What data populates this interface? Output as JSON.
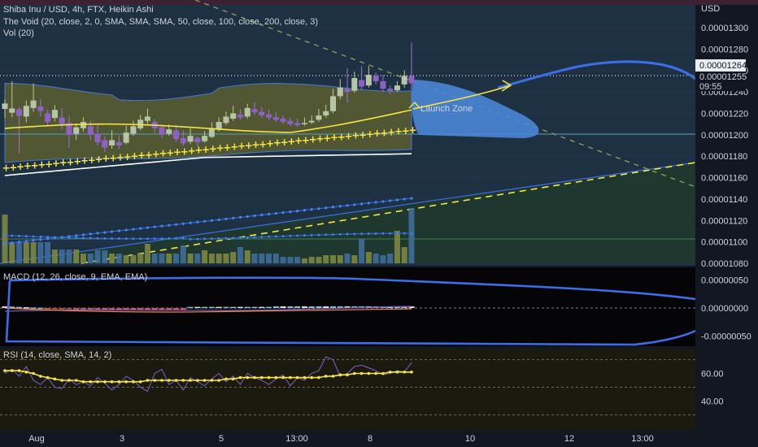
{
  "legend": {
    "title": "Shiba Inu / USD, 4h, FTX, Heikin Ashi",
    "indicator": "The Void (20, close, 2, 0, SMA, SMA, SMA, 50, close, 100, close, 200, close, 3)",
    "vol": "Vol (20)"
  },
  "currency": "USD",
  "price_tag": {
    "price": "0.00001264",
    "price2": "0.00001255",
    "countdown": "09:55"
  },
  "annotation": "Launch Zone",
  "macd_label": "MACD (12, 26, close, 9, EMA, EMA)",
  "rsi_label": "RSI (14, close, SMA, 14, 2)",
  "colors": {
    "bg": "#131722",
    "bull": "#b7b15f",
    "bear": "#7e57c2",
    "yellow": "#f5e642",
    "blue": "#3d6ee8",
    "zone": "#4a86d6"
  },
  "chart_data": [
    {
      "type": "candlestick",
      "ylim": [
        1.08e-05,
        1.32e-05
      ],
      "price_ticks": [
        "0.00001300",
        "0.00001280",
        "0.00001260",
        "0.00001240",
        "0.00001220",
        "0.00001200",
        "0.00001180",
        "0.00001160",
        "0.00001140",
        "0.00001120",
        "0.00001100",
        "0.00001080"
      ],
      "x_ticks": [
        "Aug",
        "3",
        "5",
        "13:00",
        "8",
        "10",
        "12",
        "13:00"
      ],
      "candles": [
        [
          1.2241,
          1.2292,
          1.2155,
          1.233
        ],
        [
          1.2206,
          1.2245,
          1.2162,
          1.25
        ],
        [
          1.224,
          1.2176,
          1.1825,
          1.226
        ],
        [
          1.217,
          1.227,
          1.2115,
          1.232
        ],
        [
          1.225,
          1.232,
          1.2215,
          1.248
        ],
        [
          1.2264,
          1.2222,
          1.217,
          1.233
        ],
        [
          1.22,
          1.212,
          1.2083,
          1.2236
        ],
        [
          1.2157,
          1.2232,
          1.2125,
          1.2276
        ],
        [
          1.216,
          1.2093,
          1.205,
          1.225
        ],
        [
          1.211,
          1.2,
          1.1878,
          1.218
        ],
        [
          1.201,
          1.207,
          1.195,
          1.2105
        ],
        [
          1.206,
          1.212,
          1.203,
          1.2165
        ],
        [
          1.208,
          1.2,
          1.195,
          1.213
        ],
        [
          1.201,
          1.193,
          1.19,
          1.2095
        ],
        [
          1.195,
          1.188,
          1.184,
          1.1985
        ],
        [
          1.19,
          1.195,
          1.187,
          1.2043
        ],
        [
          1.193,
          1.19,
          1.1868,
          1.1993
        ],
        [
          1.1925,
          1.202,
          1.191,
          1.2085
        ],
        [
          1.201,
          1.208,
          1.199,
          1.213
        ],
        [
          1.206,
          1.214,
          1.204,
          1.2185
        ],
        [
          1.213,
          1.217,
          1.21,
          1.2245
        ],
        [
          1.212,
          1.206,
          1.202,
          1.2148
        ],
        [
          1.207,
          1.2,
          1.197,
          1.2095
        ],
        [
          1.201,
          1.205,
          1.199,
          1.2095
        ],
        [
          1.204,
          1.196,
          1.1935,
          1.2095
        ],
        [
          1.197,
          1.192,
          1.19,
          1.2038
        ],
        [
          1.1935,
          1.199,
          1.1912,
          1.206
        ],
        [
          1.197,
          1.193,
          1.189,
          1.1985
        ],
        [
          1.194,
          1.199,
          1.1925,
          1.2035
        ],
        [
          1.198,
          1.206,
          1.197,
          1.2115
        ],
        [
          1.205,
          1.212,
          1.203,
          1.2165
        ],
        [
          1.211,
          1.217,
          1.209,
          1.2218
        ],
        [
          1.215,
          1.22,
          1.213,
          1.227
        ],
        [
          1.219,
          1.216,
          1.214,
          1.224
        ],
        [
          1.217,
          1.225,
          1.215,
          1.229
        ],
        [
          1.224,
          1.221,
          1.2185,
          1.2305
        ],
        [
          1.2215,
          1.218,
          1.216,
          1.226
        ],
        [
          1.219,
          1.216,
          1.214,
          1.2235
        ],
        [
          1.2165,
          1.214,
          1.212,
          1.2212
        ],
        [
          1.215,
          1.212,
          1.21,
          1.218
        ],
        [
          1.213,
          1.21,
          1.208,
          1.216
        ],
        [
          1.211,
          1.209,
          1.2075,
          1.215
        ],
        [
          1.21,
          1.211,
          1.2085,
          1.216
        ],
        [
          1.2115,
          1.213,
          1.21,
          1.218
        ],
        [
          1.214,
          1.218,
          1.212,
          1.224
        ],
        [
          1.218,
          1.222,
          1.216,
          1.228
        ],
        [
          1.222,
          1.236,
          1.22,
          1.243
        ],
        [
          1.236,
          1.244,
          1.233,
          1.252
        ],
        [
          1.243,
          1.24,
          1.23,
          1.262
        ],
        [
          1.241,
          1.253,
          1.239,
          1.259
        ],
        [
          1.251,
          1.245,
          1.242,
          1.264
        ],
        [
          1.246,
          1.256,
          1.244,
          1.264
        ],
        [
          1.255,
          1.25,
          1.247,
          1.258
        ],
        [
          1.25,
          1.243,
          1.24,
          1.256
        ],
        [
          1.243,
          1.241,
          1.238,
          1.246
        ],
        [
          1.2415,
          1.246,
          1.24,
          1.25
        ],
        [
          1.247,
          1.255,
          1.244,
          1.26
        ],
        [
          1.255,
          1.248,
          1.242,
          1.286
        ]
      ],
      "volume": [
        60,
        26,
        26,
        26,
        26,
        26,
        26,
        17,
        17,
        17,
        17,
        12,
        12,
        16,
        16,
        12,
        12,
        10,
        10,
        12,
        24,
        12,
        12,
        12,
        12,
        22,
        12,
        12,
        16,
        12,
        12,
        12,
        14,
        20,
        16,
        12,
        12,
        12,
        12,
        8,
        8,
        8,
        6,
        8,
        8,
        10,
        10,
        10,
        12,
        10,
        30,
        14,
        12,
        10,
        12,
        40,
        20,
        68
      ]
    },
    {
      "type": "line",
      "name": "MACD (12, 26, close, 9, EMA, EMA)",
      "ylim": [
        -6.5e-07,
        6.5e-07
      ],
      "y_ticks": [
        "0.00000050",
        "0.00000000",
        "-0.00000050"
      ]
    },
    {
      "type": "line",
      "name": "RSI (14, close, SMA, 14, 2)",
      "ylim": [
        25,
        75
      ],
      "y_ticks": [
        "60.00",
        "40.00"
      ],
      "rsi_sma": [
        62,
        62,
        62,
        61,
        60,
        58,
        57,
        56,
        55,
        55,
        55,
        54,
        54,
        54,
        54,
        54,
        54,
        54,
        54,
        54,
        55,
        55,
        55,
        55,
        55,
        55,
        55,
        55,
        55,
        55,
        55,
        56,
        56,
        57,
        57,
        57,
        57,
        57,
        57,
        57,
        57,
        57,
        57,
        57,
        57,
        58,
        58,
        59,
        59,
        60,
        60,
        60,
        60,
        60,
        61,
        61,
        61,
        61
      ]
    }
  ]
}
